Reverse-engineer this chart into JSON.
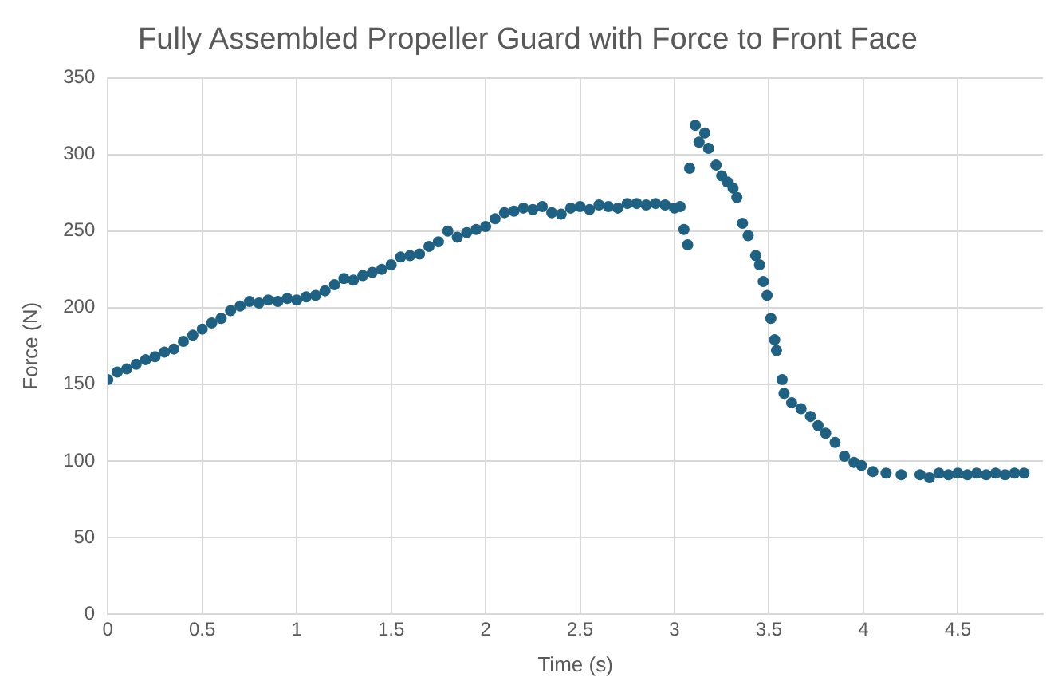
{
  "chart_data": {
    "type": "scatter",
    "title": "Fully Assembled Propeller Guard with Force to Front Face",
    "xlabel": "Time (s)",
    "ylabel": "Force (N)",
    "xlim": [
      0,
      4.95
    ],
    "xticks": [
      0,
      0.5,
      1,
      1.5,
      2,
      2.5,
      3,
      3.5,
      4,
      4.5
    ],
    "ylim": [
      0,
      350
    ],
    "yticks": [
      0,
      50,
      100,
      150,
      200,
      250,
      300,
      350
    ],
    "grid": true,
    "legend": false,
    "marker": "circle",
    "series": [
      {
        "color": "#1f6182",
        "x": [
          0,
          0.05,
          0.1,
          0.15,
          0.2,
          0.25,
          0.3,
          0.35,
          0.4,
          0.45,
          0.5,
          0.55,
          0.6,
          0.65,
          0.7,
          0.75,
          0.8,
          0.85,
          0.9,
          0.95,
          1.0,
          1.05,
          1.1,
          1.15,
          1.2,
          1.25,
          1.3,
          1.35,
          1.4,
          1.45,
          1.5,
          1.55,
          1.6,
          1.65,
          1.7,
          1.75,
          1.8,
          1.85,
          1.9,
          1.95,
          2.0,
          2.05,
          2.1,
          2.15,
          2.2,
          2.25,
          2.3,
          2.35,
          2.4,
          2.45,
          2.5,
          2.55,
          2.6,
          2.65,
          2.7,
          2.75,
          2.8,
          2.85,
          2.9,
          2.95,
          3.0,
          3.03,
          3.05,
          3.07,
          3.08,
          3.11,
          3.13,
          3.16,
          3.18,
          3.22,
          3.25,
          3.28,
          3.31,
          3.33,
          3.36,
          3.39,
          3.43,
          3.45,
          3.47,
          3.49,
          3.51,
          3.53,
          3.54,
          3.57,
          3.58,
          3.62,
          3.67,
          3.72,
          3.76,
          3.8,
          3.85,
          3.9,
          3.95,
          3.99,
          4.05,
          4.12,
          4.2,
          4.3,
          4.35,
          4.4,
          4.45,
          4.5,
          4.55,
          4.6,
          4.65,
          4.7,
          4.75,
          4.8,
          4.85
        ],
        "values": [
          153,
          158,
          160,
          163,
          166,
          168,
          171,
          173,
          178,
          182,
          186,
          190,
          193,
          198,
          201,
          204,
          203,
          205,
          204,
          206,
          205,
          207,
          208,
          211,
          215,
          219,
          218,
          221,
          223,
          225,
          228,
          233,
          234,
          235,
          240,
          243,
          250,
          246,
          249,
          251,
          253,
          258,
          262,
          263,
          265,
          264,
          266,
          262,
          261,
          265,
          266,
          264,
          267,
          266,
          265,
          268,
          268,
          267,
          268,
          267,
          265,
          266,
          251,
          241,
          291,
          319,
          308,
          314,
          304,
          293,
          286,
          282,
          278,
          272,
          255,
          247,
          234,
          228,
          217,
          208,
          193,
          179,
          172,
          153,
          144,
          138,
          134,
          129,
          123,
          118,
          112,
          103,
          99,
          97,
          93,
          92,
          91,
          91,
          89,
          92,
          91,
          92,
          91,
          92,
          91,
          92,
          91,
          92,
          92
        ]
      }
    ]
  }
}
